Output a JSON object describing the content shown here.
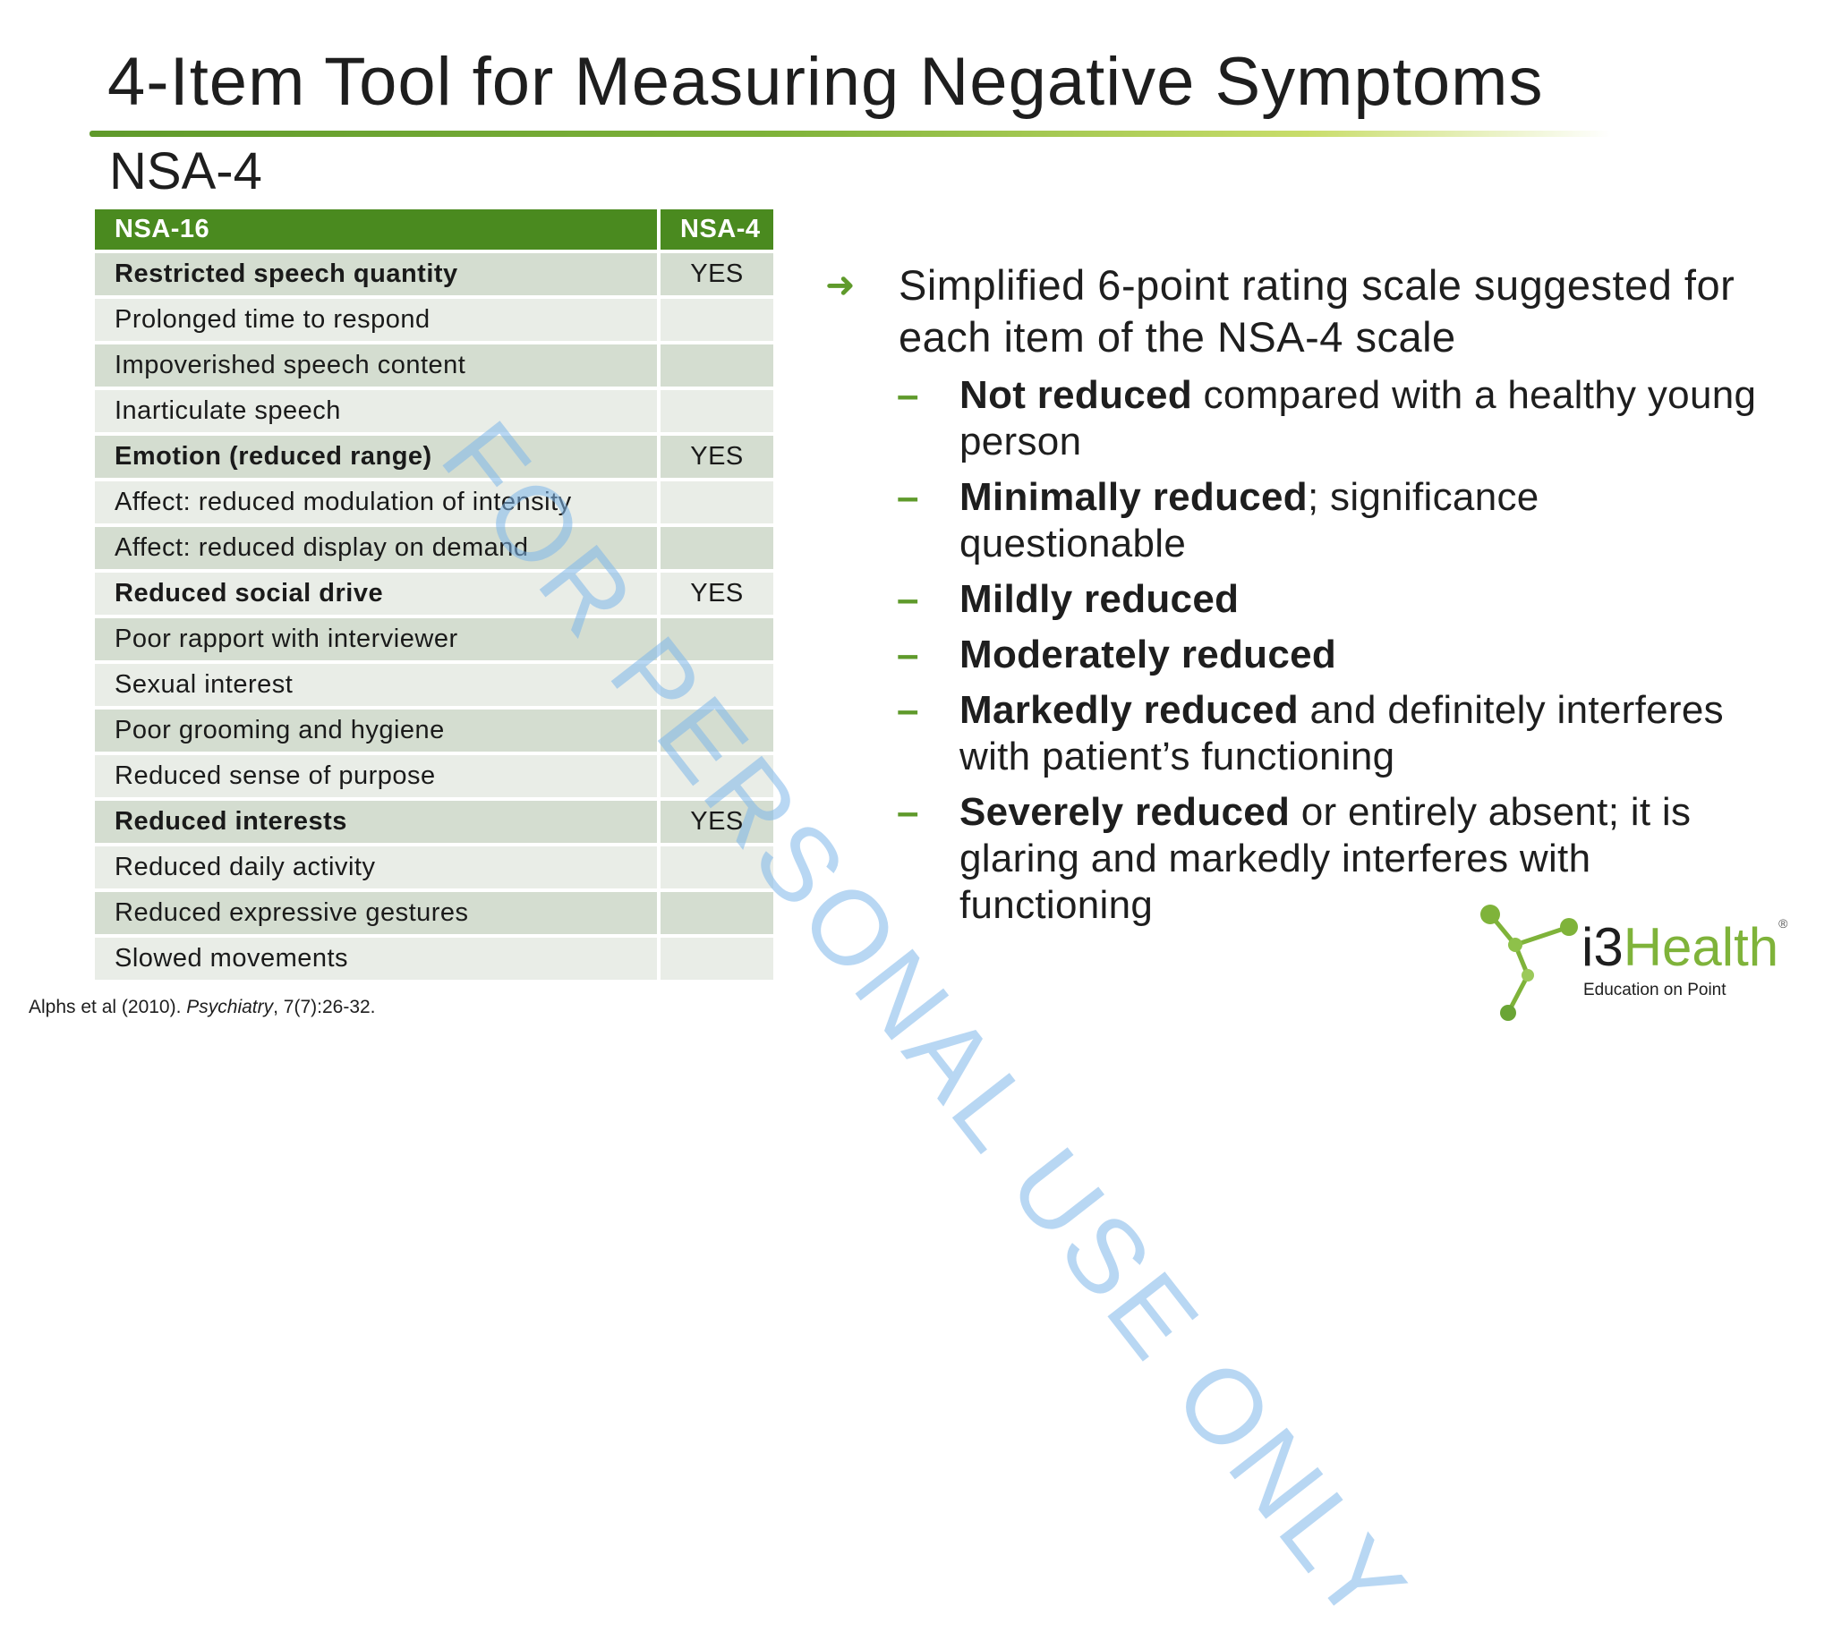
{
  "slide": {
    "title": "4-Item Tool for Measuring Negative Symptoms",
    "subtitle": "NSA-4"
  },
  "table": {
    "headers": [
      "NSA-16",
      "NSA-4"
    ],
    "rows": [
      {
        "item": "Restricted speech quantity",
        "nsa4": "YES",
        "bold": true
      },
      {
        "item": "Prolonged time to respond",
        "nsa4": "",
        "bold": false
      },
      {
        "item": "Impoverished speech content",
        "nsa4": "",
        "bold": false
      },
      {
        "item": "Inarticulate speech",
        "nsa4": "",
        "bold": false
      },
      {
        "item": "Emotion (reduced range)",
        "nsa4": "YES",
        "bold": true
      },
      {
        "item": "Affect: reduced modulation of intensity",
        "nsa4": "",
        "bold": false
      },
      {
        "item": "Affect: reduced display on demand",
        "nsa4": "",
        "bold": false
      },
      {
        "item": "Reduced social drive",
        "nsa4": "YES",
        "bold": true
      },
      {
        "item": "Poor rapport with interviewer",
        "nsa4": "",
        "bold": false
      },
      {
        "item": "Sexual interest",
        "nsa4": "",
        "bold": false
      },
      {
        "item": "Poor grooming and hygiene",
        "nsa4": "",
        "bold": false
      },
      {
        "item": "Reduced sense of purpose",
        "nsa4": "",
        "bold": false
      },
      {
        "item": "Reduced interests",
        "nsa4": "YES",
        "bold": true
      },
      {
        "item": "Reduced daily activity",
        "nsa4": "",
        "bold": false
      },
      {
        "item": "Reduced expressive gestures",
        "nsa4": "",
        "bold": false
      },
      {
        "item": "Slowed movements",
        "nsa4": "",
        "bold": false
      }
    ]
  },
  "bullets": {
    "main": "Simplified 6-point rating scale suggested for each item of the NSA-4 scale",
    "sub": [
      {
        "bold": "Not reduced",
        "rest": " compared with a healthy young person"
      },
      {
        "bold": "Minimally reduced",
        "rest": "; significance questionable"
      },
      {
        "bold": "Mildly reduced",
        "rest": ""
      },
      {
        "bold": "Moderately reduced",
        "rest": ""
      },
      {
        "bold": "Markedly reduced",
        "rest": " and definitely interferes with patient’s functioning"
      },
      {
        "bold": "Severely reduced",
        "rest": " or entirely absent; it is glaring and markedly interferes with functioning"
      }
    ]
  },
  "watermark": "FOR PERSONAL USE ONLY",
  "citation": {
    "authors": "Alphs et al (2010). ",
    "journal": "Psychiatry",
    "ref": ", 7(7):26-32."
  },
  "logo": {
    "prefix": "i3",
    "name": "Health",
    "reg": "®",
    "tagline": "Education on Point"
  },
  "colors": {
    "accent": "#5f9a2b",
    "header_bg": "#4a8a1f",
    "row_dark": "#d4ddd0",
    "row_light": "#e9ede7",
    "watermark": "#7fb7ea"
  }
}
